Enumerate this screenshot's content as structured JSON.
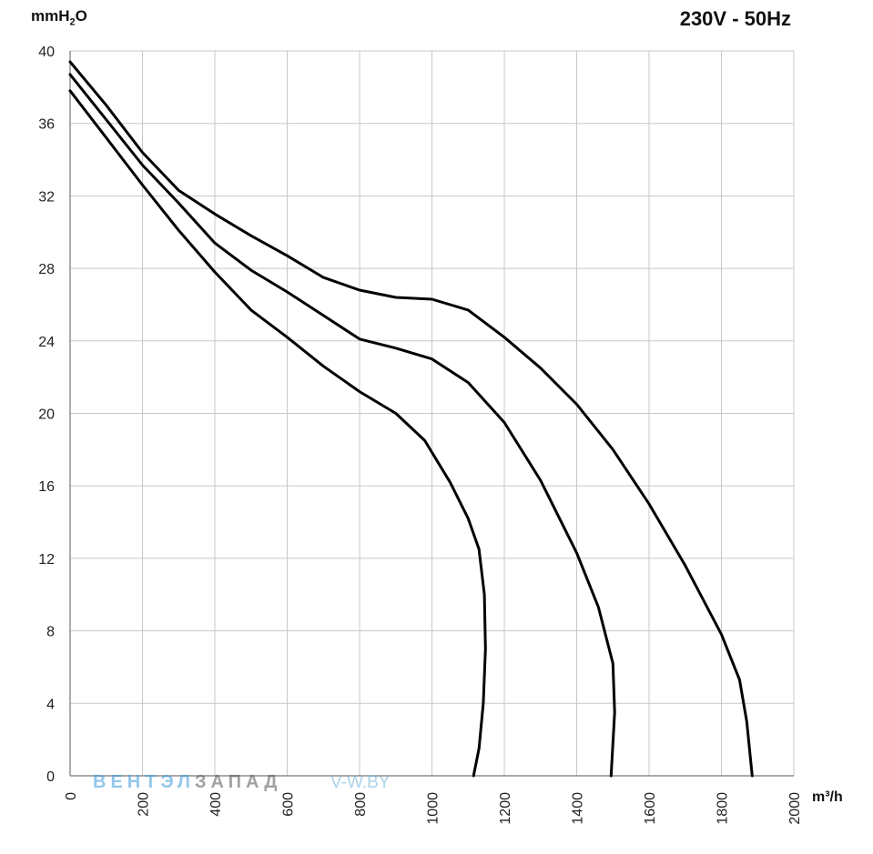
{
  "header": {
    "title": "230V - 50Hz"
  },
  "watermark": {
    "brand_part1": "ВЕНТЭЛ",
    "brand_part2": "ЗАПАД",
    "url": "V-W.BY"
  },
  "chart_data": {
    "type": "line",
    "title": "230V - 50Hz",
    "xlabel": "m³/h",
    "ylabel_main": "mmH",
    "ylabel_sub": "2",
    "ylabel_tail": "O",
    "xlim": [
      0,
      2000
    ],
    "ylim": [
      0,
      40
    ],
    "x_ticks": [
      0,
      200,
      400,
      600,
      800,
      1000,
      1200,
      1400,
      1600,
      1800,
      2000
    ],
    "y_ticks": [
      0,
      4,
      8,
      12,
      16,
      20,
      24,
      28,
      32,
      36,
      40
    ],
    "grid": true,
    "line_color": "#000000",
    "grid_color": "#c8c8c8",
    "series": [
      {
        "points": [
          [
            0,
            37.8
          ],
          [
            100,
            35.2
          ],
          [
            200,
            32.6
          ],
          [
            300,
            30.1
          ],
          [
            400,
            27.8
          ],
          [
            500,
            25.7
          ],
          [
            600,
            24.2
          ],
          [
            700,
            22.6
          ],
          [
            800,
            21.2
          ],
          [
            900,
            20
          ],
          [
            980,
            18.5
          ],
          [
            1050,
            16.2
          ],
          [
            1100,
            14.2
          ],
          [
            1130,
            12.5
          ],
          [
            1145,
            10
          ],
          [
            1148,
            7
          ],
          [
            1142,
            4
          ],
          [
            1130,
            1.5
          ],
          [
            1115,
            0
          ]
        ]
      },
      {
        "points": [
          [
            0,
            38.7
          ],
          [
            100,
            36.2
          ],
          [
            200,
            33.7
          ],
          [
            300,
            31.6
          ],
          [
            400,
            29.4
          ],
          [
            500,
            27.9
          ],
          [
            600,
            26.7
          ],
          [
            700,
            25.4
          ],
          [
            800,
            24.1
          ],
          [
            900,
            23.6
          ],
          [
            1000,
            23
          ],
          [
            1100,
            21.7
          ],
          [
            1200,
            19.5
          ],
          [
            1300,
            16.3
          ],
          [
            1400,
            12.3
          ],
          [
            1460,
            9.3
          ],
          [
            1500,
            6.2
          ],
          [
            1505,
            3.5
          ],
          [
            1495,
            0
          ]
        ]
      },
      {
        "points": [
          [
            0,
            39.4
          ],
          [
            100,
            37
          ],
          [
            200,
            34.4
          ],
          [
            300,
            32.3
          ],
          [
            400,
            31
          ],
          [
            500,
            29.8
          ],
          [
            600,
            28.7
          ],
          [
            700,
            27.5
          ],
          [
            800,
            26.8
          ],
          [
            900,
            26.4
          ],
          [
            1000,
            26.3
          ],
          [
            1100,
            25.7
          ],
          [
            1200,
            24.2
          ],
          [
            1300,
            22.5
          ],
          [
            1400,
            20.5
          ],
          [
            1500,
            18
          ],
          [
            1600,
            15
          ],
          [
            1700,
            11.6
          ],
          [
            1800,
            7.8
          ],
          [
            1850,
            5.3
          ],
          [
            1870,
            3
          ],
          [
            1885,
            0
          ]
        ]
      }
    ]
  }
}
